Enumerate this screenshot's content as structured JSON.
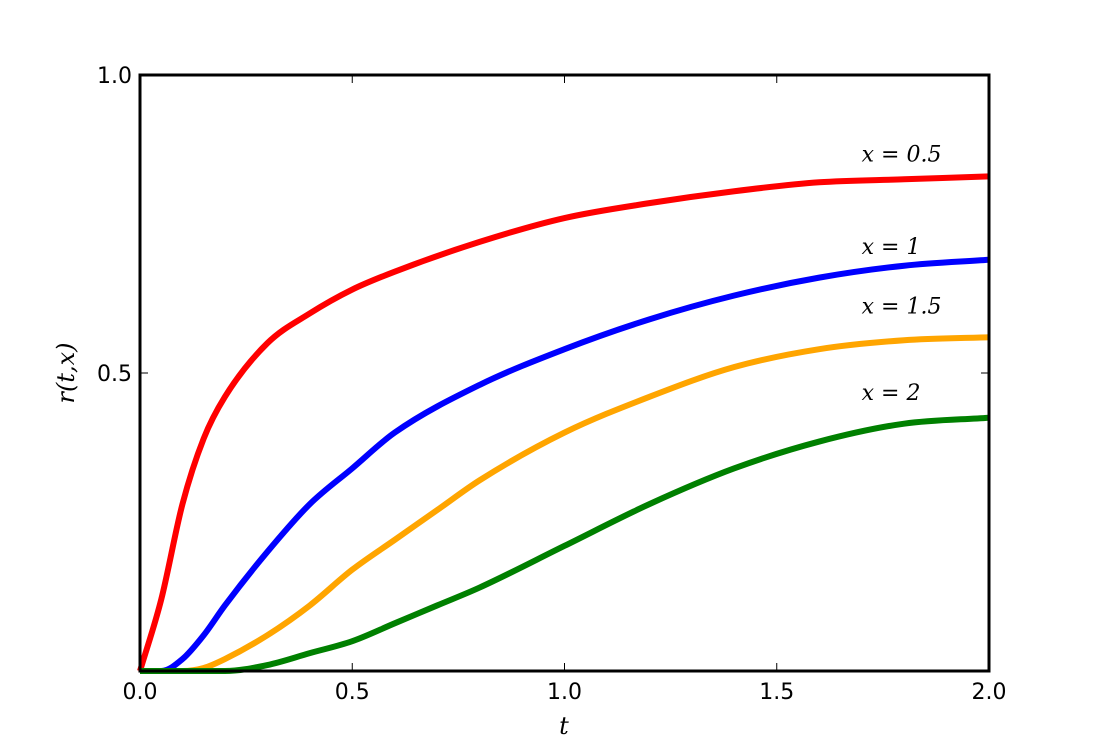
{
  "chart_data": {
    "type": "line",
    "title": "",
    "xlabel": "t",
    "ylabel": "r(t,x)",
    "xlim": [
      0.0,
      2.0
    ],
    "ylim": [
      0.0,
      1.0
    ],
    "grid": false,
    "x_ticks": [
      {
        "value": 0.0,
        "label": "0.0"
      },
      {
        "value": 0.5,
        "label": "0.5"
      },
      {
        "value": 1.0,
        "label": "1.0"
      },
      {
        "value": 1.5,
        "label": "1.5"
      },
      {
        "value": 2.0,
        "label": "2.0"
      }
    ],
    "y_ticks": [
      {
        "value": 0.5,
        "label": "0.5"
      },
      {
        "value": 1.0,
        "label": "1.0"
      }
    ],
    "series": [
      {
        "label": "x = 0.5",
        "color": "#ff0000",
        "x": [
          0.0,
          0.05,
          0.1,
          0.15,
          0.2,
          0.3,
          0.4,
          0.5,
          0.6,
          0.8,
          1.0,
          1.2,
          1.4,
          1.6,
          1.8,
          2.0
        ],
        "y": [
          0.0,
          0.12,
          0.28,
          0.39,
          0.46,
          0.55,
          0.6,
          0.64,
          0.67,
          0.72,
          0.76,
          0.785,
          0.805,
          0.82,
          0.825,
          0.83
        ]
      },
      {
        "label": "x = 1",
        "color": "#0000ff",
        "x": [
          0.0,
          0.05,
          0.1,
          0.15,
          0.2,
          0.3,
          0.4,
          0.5,
          0.6,
          0.8,
          1.0,
          1.2,
          1.4,
          1.6,
          1.8,
          2.0
        ],
        "y": [
          0.0,
          0.0,
          0.02,
          0.06,
          0.11,
          0.2,
          0.28,
          0.34,
          0.4,
          0.48,
          0.54,
          0.59,
          0.63,
          0.66,
          0.68,
          0.69
        ]
      },
      {
        "label": "x = 1.5",
        "color": "#ffa500",
        "x": [
          0.0,
          0.1,
          0.15,
          0.2,
          0.3,
          0.4,
          0.5,
          0.6,
          0.7,
          0.8,
          1.0,
          1.2,
          1.4,
          1.6,
          1.8,
          2.0
        ],
        "y": [
          0.0,
          0.0,
          0.005,
          0.02,
          0.06,
          0.11,
          0.17,
          0.22,
          0.27,
          0.32,
          0.4,
          0.46,
          0.51,
          0.54,
          0.555,
          0.56
        ]
      },
      {
        "label": "x = 2",
        "color": "#008000",
        "x": [
          0.0,
          0.2,
          0.3,
          0.4,
          0.5,
          0.6,
          0.7,
          0.8,
          1.0,
          1.2,
          1.4,
          1.6,
          1.8,
          2.0
        ],
        "y": [
          0.0,
          0.0,
          0.01,
          0.03,
          0.05,
          0.08,
          0.11,
          0.14,
          0.21,
          0.28,
          0.34,
          0.385,
          0.415,
          0.425
        ]
      }
    ],
    "annotations": [
      {
        "text": "x = 0.5",
        "x": 1.7,
        "y": 0.855
      },
      {
        "text": "x = 1",
        "x": 1.7,
        "y": 0.7
      },
      {
        "text": "x = 1.5",
        "x": 1.7,
        "y": 0.6
      },
      {
        "text": "x = 2",
        "x": 1.7,
        "y": 0.455
      }
    ]
  }
}
